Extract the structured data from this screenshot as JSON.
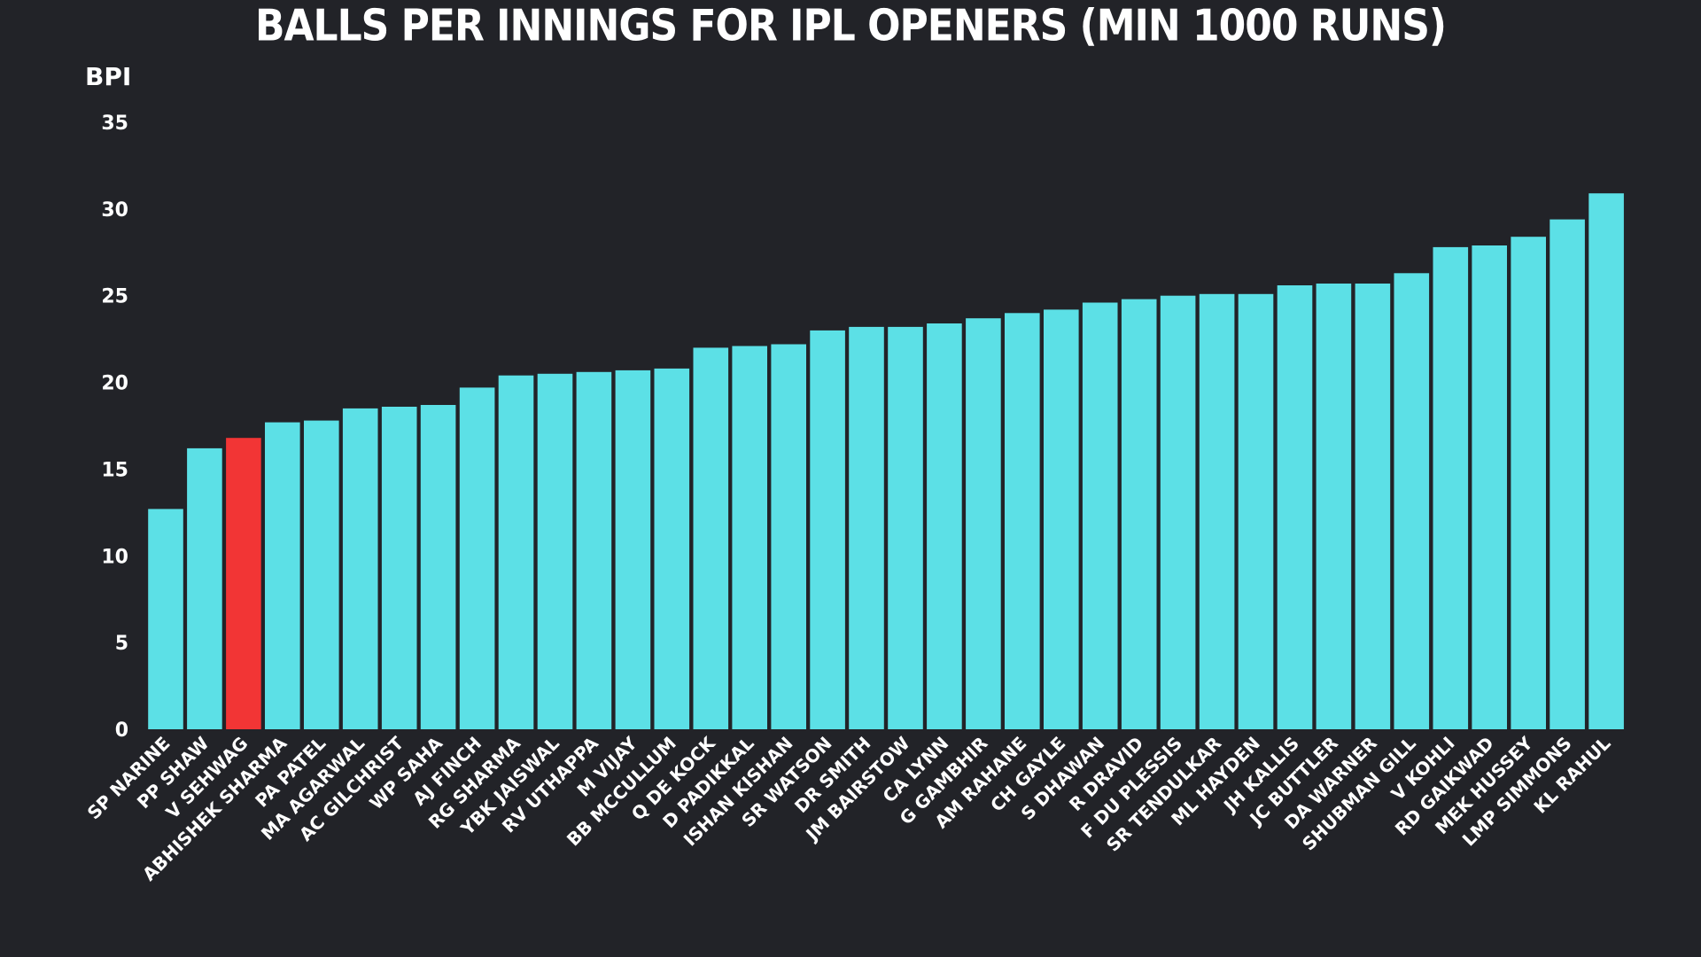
{
  "colors": {
    "background": "#222328",
    "bar": "#5ce0e6",
    "highlight": "#f23535",
    "text": "#ffffff"
  },
  "chart_data": {
    "type": "bar",
    "title": "BALLS PER INNINGS FOR IPL OPENERS (MIN 1000 RUNS)",
    "ylabel": "BPI",
    "xlabel": "",
    "ylim": [
      0,
      35
    ],
    "yticks": [
      0,
      5,
      10,
      15,
      20,
      25,
      30,
      35
    ],
    "grid": false,
    "legend": "none",
    "highlight_category": "V SEHWAG",
    "categories": [
      "SP NARINE",
      "PP SHAW",
      "V SEHWAG",
      "ABHISHEK SHARMA",
      "PA PATEL",
      "MA AGARWAL",
      "AC GILCHRIST",
      "WP SAHA",
      "AJ FINCH",
      "RG SHARMA",
      "YBK JAISWAL",
      "RV UTHAPPA",
      "M VIJAY",
      "BB MCCULLUM",
      "Q DE KOCK",
      "D PADIKKAL",
      "ISHAN KISHAN",
      "SR WATSON",
      "DR SMITH",
      "JM BAIRSTOW",
      "CA LYNN",
      "G GAMBHIR",
      "AM RAHANE",
      "CH GAYLE",
      "S DHAWAN",
      "R DRAVID",
      "F DU PLESSIS",
      "SR TENDULKAR",
      "ML HAYDEN",
      "JH KALLIS",
      "JC BUTTLER",
      "DA WARNER",
      "SHUBMAN GILL",
      "V KOHLI",
      "RD GAIKWAD",
      "MEK HUSSEY",
      "LMP SIMMONS",
      "KL RAHUL"
    ],
    "values": [
      12.7,
      16.2,
      16.8,
      17.7,
      17.8,
      18.5,
      18.6,
      18.7,
      19.7,
      20.4,
      20.5,
      20.6,
      20.7,
      20.8,
      22.0,
      22.1,
      22.2,
      23.0,
      23.2,
      23.2,
      23.4,
      23.7,
      24.0,
      24.2,
      24.6,
      24.8,
      25.0,
      25.1,
      25.1,
      25.6,
      25.7,
      25.7,
      26.3,
      27.8,
      27.9,
      28.4,
      29.4,
      30.9
    ]
  }
}
